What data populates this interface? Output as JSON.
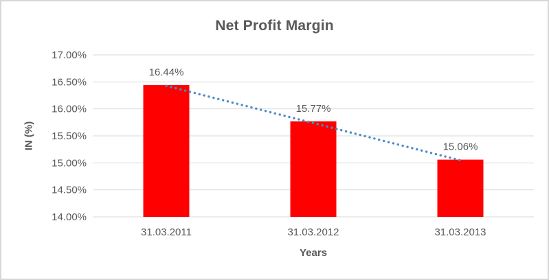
{
  "chart_data": {
    "type": "bar",
    "title": "Net Profit Margin",
    "xlabel": "Years",
    "ylabel": "IN (%)",
    "categories": [
      "31.03.2011",
      "31.03.2012",
      "31.03.2013"
    ],
    "values": [
      16.44,
      15.77,
      15.06
    ],
    "data_labels": [
      "16.44%",
      "15.77%",
      "15.06%"
    ],
    "ytick_labels": [
      "17.00%",
      "16.50%",
      "16.00%",
      "15.50%",
      "15.00%",
      "14.50%",
      "14.00%"
    ],
    "ytick_values": [
      17.0,
      16.5,
      16.0,
      15.5,
      15.0,
      14.5,
      14.0
    ],
    "ylim": [
      14.0,
      17.0
    ],
    "grid": true,
    "legend": "none",
    "trendline": {
      "type": "linear",
      "style": "dotted",
      "start_value": 16.44,
      "end_value": 15.06
    },
    "colors": {
      "bar": "#ff0000",
      "trendline": "#4a8bc8",
      "gridline": "#d9d9d9",
      "axis_text": "#595959",
      "data_label_text": "#595959",
      "title_text": "#595959",
      "border": "#d7d7d7",
      "background": "#ffffff"
    }
  }
}
